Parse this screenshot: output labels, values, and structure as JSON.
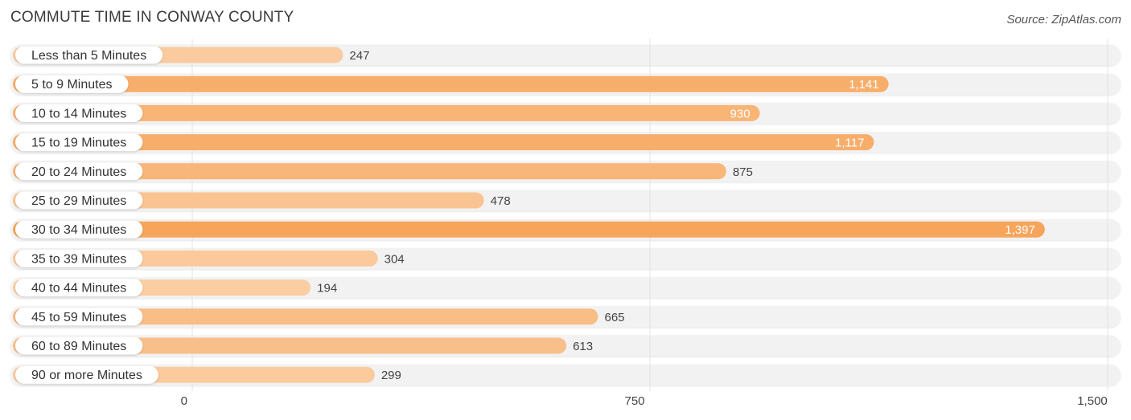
{
  "chart_data": {
    "type": "bar",
    "orientation": "horizontal",
    "title": "COMMUTE TIME IN CONWAY COUNTY",
    "source": "Source: ZipAtlas.com",
    "categories": [
      "Less than 5 Minutes",
      "5 to 9 Minutes",
      "10 to 14 Minutes",
      "15 to 19 Minutes",
      "20 to 24 Minutes",
      "25 to 29 Minutes",
      "30 to 34 Minutes",
      "35 to 39 Minutes",
      "40 to 44 Minutes",
      "45 to 59 Minutes",
      "60 to 89 Minutes",
      "90 or more Minutes"
    ],
    "values": [
      247,
      1141,
      930,
      1117,
      875,
      478,
      1397,
      304,
      194,
      665,
      613,
      299
    ],
    "value_labels": [
      "247",
      "1,141",
      "930",
      "1,117",
      "875",
      "478",
      "1,397",
      "304",
      "194",
      "665",
      "613",
      "299"
    ],
    "xlim": [
      0,
      1500
    ],
    "xticks": [
      0,
      750,
      1500
    ],
    "xtick_labels": [
      "0",
      "750",
      "1,500"
    ],
    "xlabel": "",
    "ylabel": "",
    "grid": true,
    "colors": {
      "bar_max": "#f6a55a",
      "bar_min": "#fbcda3",
      "track": "#f2f2f2",
      "label_inside": "#ffffff",
      "label_outside": "#444444",
      "grid": "#e3e3e3"
    }
  }
}
